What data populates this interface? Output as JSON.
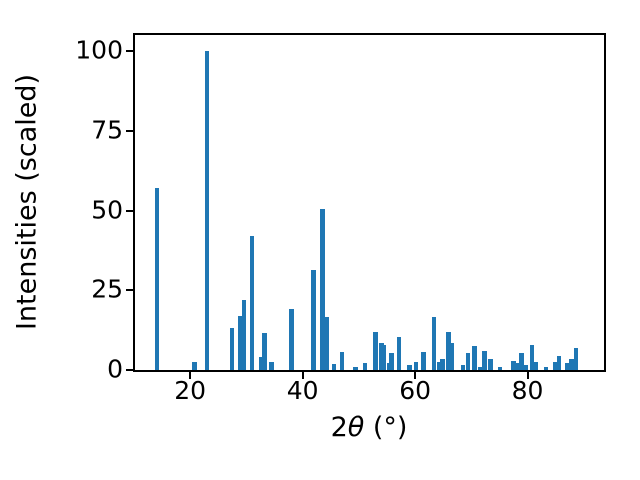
{
  "figure": {
    "background": "#ffffff"
  },
  "chart_data": {
    "type": "bar",
    "title": "",
    "xlabel": "2θ (°)",
    "xlabel_parts": {
      "prefix": "2",
      "theta": "θ",
      "suffix": " (°)"
    },
    "ylabel": "Intensities (scaled)",
    "xlim": [
      10.2,
      93.6
    ],
    "ylim": [
      0,
      105
    ],
    "xticks": [
      20,
      40,
      60,
      80
    ],
    "yticks": [
      0,
      25,
      50,
      75,
      100
    ],
    "grid": false,
    "legend": "none",
    "bar_color": "#1f77b4",
    "axis_color": "#000000",
    "bar_width_deg": 0.8,
    "x": [
      14.1,
      20.8,
      23.0,
      27.4,
      28.9,
      29.6,
      31.0,
      32.6,
      33.2,
      34.5,
      38.0,
      41.9,
      43.5,
      44.3,
      45.6,
      47.0,
      49.4,
      51.1,
      53.0,
      54.0,
      54.5,
      55.4,
      55.8,
      57.1,
      59.0,
      60.2,
      61.5,
      63.4,
      64.3,
      64.9,
      65.9,
      66.6,
      68.5,
      69.4,
      70.6,
      71.5,
      72.3,
      73.4,
      75.1,
      77.5,
      78.2,
      78.9,
      79.6,
      80.8,
      81.5,
      83.3,
      84.9,
      85.6,
      87.1,
      87.8,
      88.6
    ],
    "values": [
      57.0,
      2.4,
      100.0,
      13.2,
      17.0,
      22.0,
      42.0,
      4.2,
      11.6,
      2.4,
      19.2,
      31.3,
      50.5,
      16.5,
      1.8,
      5.8,
      1.0,
      2.3,
      12.0,
      8.4,
      7.7,
      2.2,
      5.3,
      10.5,
      1.6,
      2.6,
      5.8,
      16.5,
      2.6,
      3.5,
      12.0,
      8.4,
      1.7,
      5.3,
      7.4,
      1.0,
      6.1,
      3.4,
      1.0,
      2.9,
      2.3,
      5.5,
      1.6,
      7.8,
      2.4,
      1.0,
      2.6,
      4.4,
      2.3,
      3.4,
      6.9
    ]
  }
}
